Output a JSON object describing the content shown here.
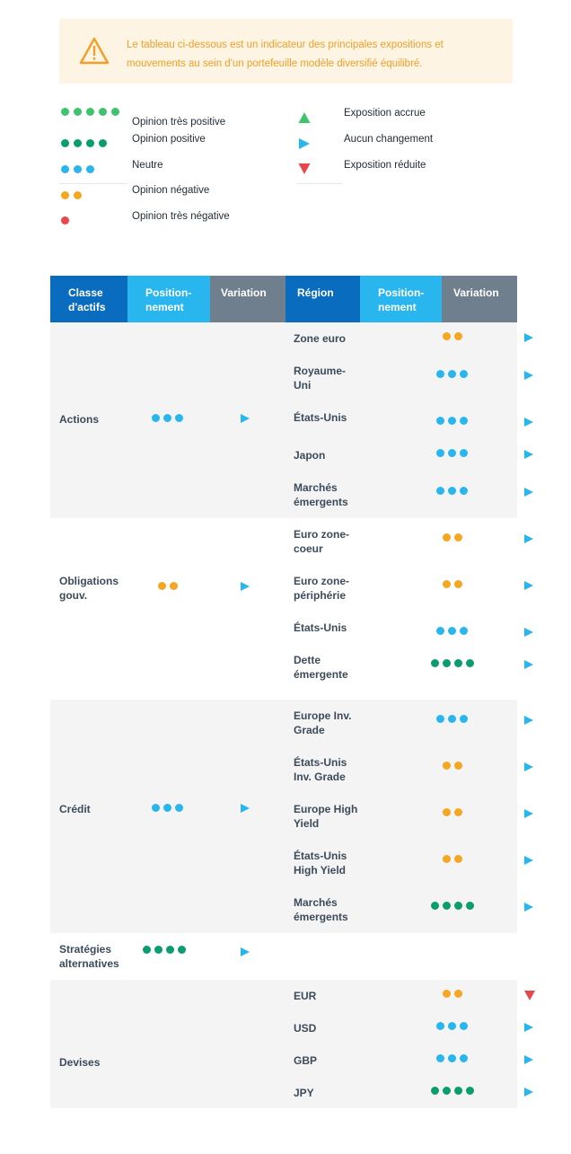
{
  "notice": {
    "text": "Le tableau ci-dessous est un indicateur des principales expositions et mouvements au sein d'un portefeuille modèle diversifié équilibré.",
    "icon": "warning-triangle-icon",
    "color": "#f0a028"
  },
  "legend": {
    "opinions": [
      {
        "label": "Opinion très positive",
        "dots": 5,
        "color": "#3ec46d"
      },
      {
        "label": "Opinion positive",
        "dots": 4,
        "color": "#0a9e6f"
      },
      {
        "label": "Neutre",
        "dots": 3,
        "color": "#29b6ee"
      },
      {
        "label": "Opinion négative",
        "dots": 2,
        "color": "#f5a623"
      },
      {
        "label": "Opinion très négative",
        "dots": 1,
        "color": "#e8474b"
      }
    ],
    "variations": [
      {
        "label": "Exposition accrue",
        "icon": "triangle-up-icon",
        "color": "#3ec46d"
      },
      {
        "label": "Aucun changement",
        "icon": "triangle-right-icon",
        "color": "#29b6ee"
      },
      {
        "label": "Exposition réduite",
        "icon": "triangle-down-icon",
        "color": "#e8474b"
      }
    ]
  },
  "table": {
    "headers": {
      "asset_class": "Classe d'actifs",
      "positioning": "Position-nement",
      "variation": "Variation",
      "region": "Région",
      "region_positioning": "Position-nement",
      "region_variation": "Variation"
    },
    "groups": [
      {
        "label": "Actions",
        "dots": 3,
        "variation": "unchanged",
        "rows": [
          {
            "region": "Zone euro",
            "dots": 2,
            "variation": "unchanged"
          },
          {
            "region": "Royaume-Uni",
            "dots": 3,
            "variation": "unchanged"
          },
          {
            "region": "États-Unis",
            "dots": 3,
            "variation": "unchanged"
          },
          {
            "region": "Japon",
            "dots": 3,
            "variation": "unchanged"
          },
          {
            "region": "Marchés émergents",
            "dots": 3,
            "variation": "unchanged"
          }
        ]
      },
      {
        "label": "Obligations gouv.",
        "dots": 2,
        "variation": "unchanged",
        "rows": [
          {
            "region": "Euro zone-coeur",
            "dots": 2,
            "variation": "unchanged"
          },
          {
            "region": "Euro zone-périphérie",
            "dots": 2,
            "variation": "unchanged"
          },
          {
            "region": "États-Unis",
            "dots": 3,
            "variation": "unchanged"
          },
          {
            "region": "Dette émergente",
            "dots": 4,
            "variation": "unchanged"
          }
        ]
      },
      {
        "label": "Crédit",
        "dots": 3,
        "variation": "unchanged",
        "rows": [
          {
            "region": "Europe Inv. Grade",
            "dots": 3,
            "variation": "unchanged"
          },
          {
            "region": "États-Unis Inv. Grade",
            "dots": 2,
            "variation": "unchanged"
          },
          {
            "region": "Europe High Yield",
            "dots": 2,
            "variation": "unchanged"
          },
          {
            "region": "États-Unis High Yield",
            "dots": 2,
            "variation": "unchanged"
          },
          {
            "region": "Marchés émergents",
            "dots": 4,
            "variation": "unchanged"
          }
        ]
      },
      {
        "label": "Stratégies alternatives",
        "dots": 4,
        "variation": "unchanged",
        "rows": []
      },
      {
        "label": "Devises",
        "dots": 0,
        "variation": "",
        "rows": [
          {
            "region": "EUR",
            "dots": 2,
            "variation": "reduced"
          },
          {
            "region": "USD",
            "dots": 3,
            "variation": "unchanged"
          },
          {
            "region": "GBP",
            "dots": 3,
            "variation": "unchanged"
          },
          {
            "region": "JPY",
            "dots": 4,
            "variation": "unchanged"
          }
        ]
      }
    ]
  }
}
